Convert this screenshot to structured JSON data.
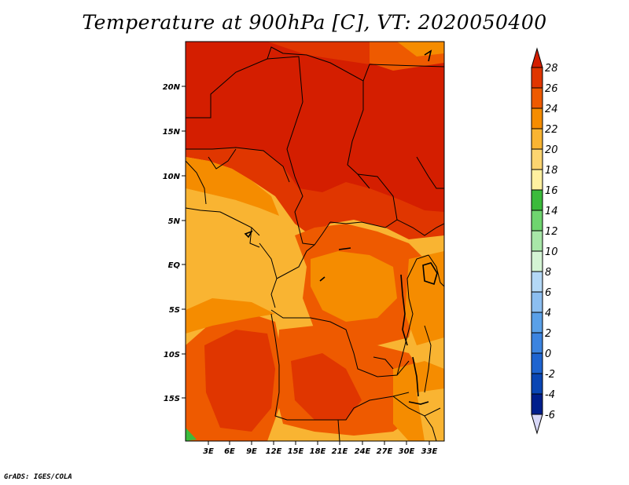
{
  "title": "Temperature at 900hPa [C], VT: 2020050400",
  "credit": "GrADS: IGES/COLA",
  "map": {
    "lat_labels": [
      "20N",
      "15N",
      "10N",
      "5N",
      "EQ",
      "5S",
      "10S",
      "15S"
    ],
    "lon_labels": [
      "3E",
      "6E",
      "9E",
      "12E",
      "15E",
      "18E",
      "21E",
      "24E",
      "27E",
      "30E",
      "33E"
    ]
  },
  "colorbar": {
    "labels": [
      "28",
      "26",
      "24",
      "22",
      "20",
      "18",
      "16",
      "14",
      "12",
      "10",
      "8",
      "6",
      "4",
      "2",
      "0",
      "-2",
      "-4",
      "-6"
    ],
    "colors": [
      "#d41e00",
      "#e03600",
      "#ee5a00",
      "#f58c00",
      "#f9b432",
      "#fcd470",
      "#fff0a0",
      "#3cbb3c",
      "#6fd46f",
      "#a8e6a8",
      "#d4f4d4",
      "#b4d8f6",
      "#8cbef0",
      "#5aa0e8",
      "#3c84e0",
      "#1e64d0",
      "#0a46b4",
      "#001e8c",
      "#d8d8f8"
    ]
  }
}
